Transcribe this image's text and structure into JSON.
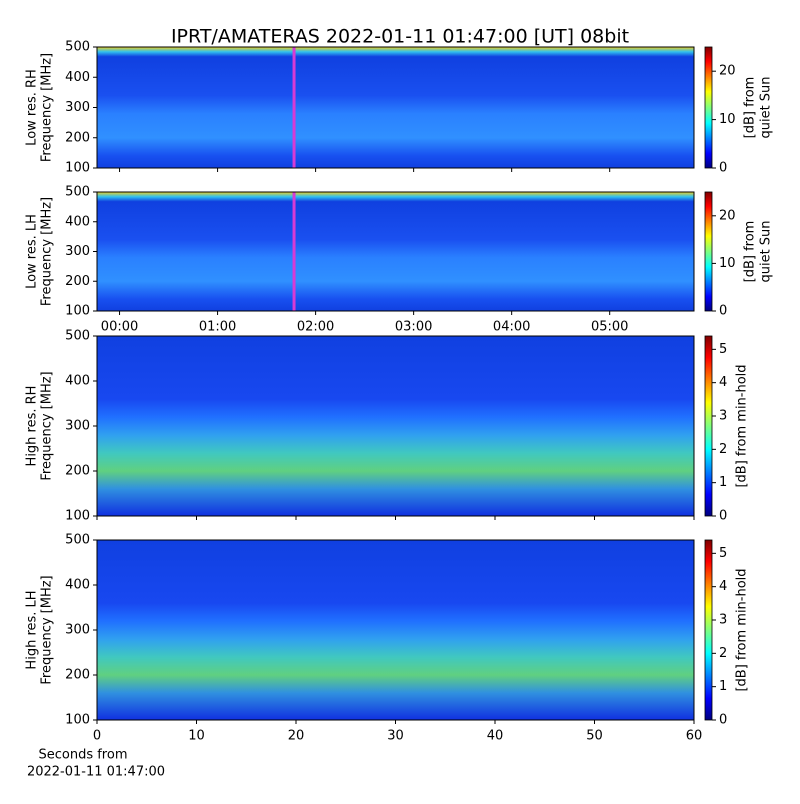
{
  "title": "IPRT/AMATERAS 2022-01-11 01:47:00 [UT]   08bit",
  "chart_data": [
    {
      "type": "heatmap",
      "ylabel": [
        "Low res. RH",
        "Frequency [MHz]"
      ],
      "ylim": [
        100,
        500
      ],
      "yticks": [
        100,
        200,
        300,
        400,
        500
      ],
      "xlim": [
        -0.23,
        5.86
      ],
      "marker_x": 1.78,
      "marker_color": "#d63bd6",
      "colorbar": {
        "label": [
          "[dB] from",
          "quiet Sun"
        ],
        "lim": [
          0,
          25
        ],
        "ticks": [
          0,
          10,
          20
        ]
      }
    },
    {
      "type": "heatmap",
      "ylabel": [
        "Low res. LH",
        "Frequency [MHz]"
      ],
      "ylim": [
        100,
        500
      ],
      "yticks": [
        100,
        200,
        300,
        400,
        500
      ],
      "xlim": [
        -0.23,
        5.86
      ],
      "xticks": [
        {
          "value": 0,
          "label": "00:00"
        },
        {
          "value": 1,
          "label": "01:00"
        },
        {
          "value": 2,
          "label": "02:00"
        },
        {
          "value": 3,
          "label": "03:00"
        },
        {
          "value": 4,
          "label": "04:00"
        },
        {
          "value": 5,
          "label": "05:00"
        }
      ],
      "marker_x": 1.78,
      "marker_color": "#d63bd6",
      "colorbar": {
        "label": [
          "[dB] from",
          "quiet Sun"
        ],
        "lim": [
          0,
          25
        ],
        "ticks": [
          0,
          10,
          20
        ]
      }
    },
    {
      "type": "heatmap",
      "ylabel": [
        "High res. RH",
        "Frequency [MHz]"
      ],
      "ylim": [
        100,
        500
      ],
      "yticks": [
        100,
        200,
        300,
        400,
        500
      ],
      "xlim": [
        0,
        60
      ],
      "colorbar": {
        "label": [
          "[dB] from min-hold"
        ],
        "lim": [
          0,
          5.4
        ],
        "ticks": [
          0,
          1,
          2,
          3,
          4,
          5
        ]
      }
    },
    {
      "type": "heatmap",
      "ylabel": [
        "High res. LH",
        "Frequency [MHz]"
      ],
      "ylim": [
        100,
        500
      ],
      "yticks": [
        100,
        200,
        300,
        400,
        500
      ],
      "xlim": [
        0,
        60
      ],
      "xticks": [
        0,
        10,
        20,
        30,
        40,
        50,
        60
      ],
      "xlabel": [
        "Seconds from",
        "2022-01-11 01:47:00"
      ],
      "colorbar": {
        "label": [
          "[dB] from min-hold"
        ],
        "lim": [
          0,
          5.4
        ],
        "ticks": [
          0,
          1,
          2,
          3,
          4,
          5
        ]
      }
    }
  ]
}
